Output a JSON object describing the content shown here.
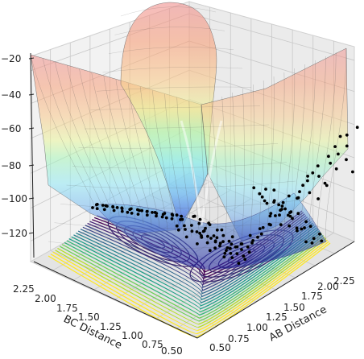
{
  "chart_data": {
    "type": "surface",
    "description_of_layers": [
      "surface",
      "contour-projection",
      "trajectory-points"
    ],
    "xlabel": "AB Distance",
    "ylabel": "BC Distance",
    "zlabel": "",
    "xlim": [
      0.5,
      2.4
    ],
    "ylim": [
      0.5,
      2.4
    ],
    "zlim": [
      -135,
      -18
    ],
    "x_ticks": [
      "0.50",
      "0.75",
      "1.00",
      "1.25",
      "1.50",
      "1.75",
      "2.00",
      "2.25"
    ],
    "y_ticks": [
      "0.50",
      "0.75",
      "1.00",
      "1.25",
      "1.50",
      "1.75",
      "2.00",
      "2.25"
    ],
    "z_ticks": [
      "−120",
      "−100",
      "−80",
      "−60",
      "−40",
      "−20"
    ],
    "colormaps": {
      "surface": "jet",
      "contours": "viridis"
    },
    "trajectory_points_color": "#000000",
    "grid": true
  }
}
